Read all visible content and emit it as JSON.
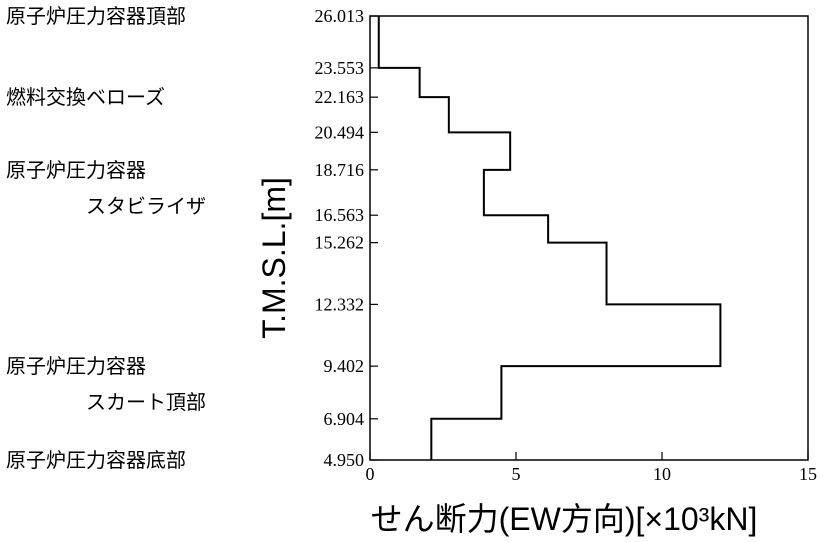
{
  "chart_data": {
    "type": "line",
    "xlabel": "せん断力(EW方向)[×10³kN]",
    "ylabel": "T.M.S.L.[m]",
    "xlim": [
      0,
      15
    ],
    "ylim": [
      4.95,
      26.013
    ],
    "x_ticks": [
      "0",
      "5",
      "10",
      "15"
    ],
    "x_tick_values": [
      0,
      5,
      10,
      15
    ],
    "y_ticks": [
      "26.013",
      "23.553",
      "22.163",
      "20.494",
      "18.716",
      "16.563",
      "15.262",
      "12.332",
      "9.402",
      "6.904",
      "4.950"
    ],
    "y_tick_values": [
      26.013,
      23.553,
      22.163,
      20.494,
      18.716,
      16.563,
      15.262,
      12.332,
      9.402,
      6.904,
      4.95
    ],
    "series": [
      {
        "segments": [
          {
            "y_top": 26.013,
            "y_bottom": 23.553,
            "value": 0.3
          },
          {
            "y_top": 23.553,
            "y_bottom": 22.163,
            "value": 1.7
          },
          {
            "y_top": 22.163,
            "y_bottom": 20.494,
            "value": 2.7
          },
          {
            "y_top": 20.494,
            "y_bottom": 18.716,
            "value": 4.8
          },
          {
            "y_top": 18.716,
            "y_bottom": 16.563,
            "value": 3.9
          },
          {
            "y_top": 16.563,
            "y_bottom": 15.262,
            "value": 6.1
          },
          {
            "y_top": 15.262,
            "y_bottom": 12.332,
            "value": 8.1
          },
          {
            "y_top": 12.332,
            "y_bottom": 9.402,
            "value": 12.0
          },
          {
            "y_top": 9.402,
            "y_bottom": 6.904,
            "value": 4.5
          },
          {
            "y_top": 6.904,
            "y_bottom": 4.95,
            "value": 2.1
          }
        ]
      }
    ],
    "annotations": [
      {
        "lines": [
          "原子炉圧力容器頂部"
        ],
        "y": 26.013
      },
      {
        "lines": [
          "燃料交換ベローズ"
        ],
        "y": 22.163
      },
      {
        "lines": [
          "原子炉圧力容器",
          "スタビライザ"
        ],
        "y": 18.716
      },
      {
        "lines": [
          "原子炉圧力容器",
          "スカート頂部"
        ],
        "y": 9.402
      },
      {
        "lines": [
          "原子炉圧力容器底部"
        ],
        "y": 4.95
      }
    ]
  }
}
